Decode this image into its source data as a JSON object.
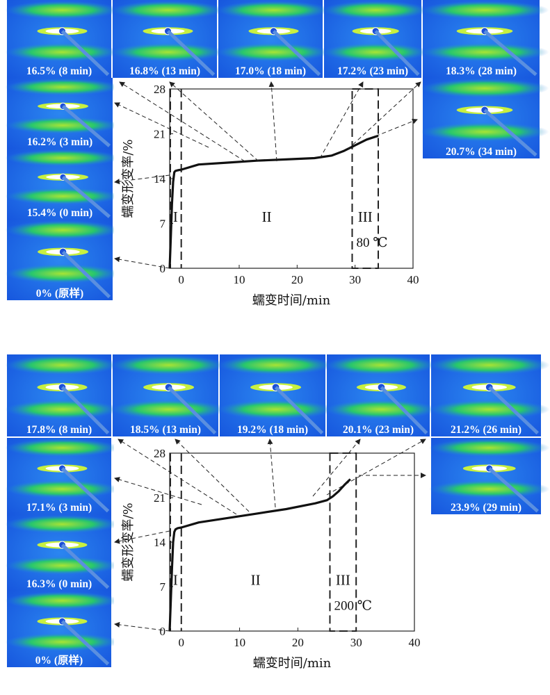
{
  "chart_data": [
    {
      "type": "line",
      "xlabel": "蠕变时间/min",
      "ylabel": "蠕变形变率/%",
      "xlim": [
        -2,
        40
      ],
      "ylim": [
        0,
        28
      ],
      "xticks": [
        0,
        10,
        20,
        30,
        40
      ],
      "yticks": [
        0,
        7,
        14,
        21,
        28
      ],
      "regions": [
        {
          "label": "I",
          "x0": -2,
          "x1": 0
        },
        {
          "label": "II",
          "x0": 0,
          "x1": 29.5
        },
        {
          "label": "III",
          "x0": 29.5,
          "x1": 34
        }
      ],
      "temperature": "80 ℃",
      "series": [
        {
          "x": [
            -2,
            -1.8,
            -1.6,
            -1.4,
            -1.2,
            -1,
            -0.6,
            0,
            3,
            8,
            13,
            18,
            23,
            26,
            28,
            30,
            32,
            34
          ],
          "y": [
            0,
            5,
            10,
            13.5,
            15,
            15.2,
            15.3,
            15.4,
            16.2,
            16.5,
            16.8,
            17.0,
            17.2,
            17.6,
            18.3,
            19.2,
            20.1,
            20.7
          ]
        }
      ],
      "annotations": [
        "16.5% (8 min)",
        "16.8% (13 min)",
        "17.0% (18 min)",
        "17.2% (23 min)",
        "18.3% (28 min)",
        "16.2% (3 min)",
        "15.4% (0 min)",
        "0% (原样)",
        "20.7% (34 min)"
      ]
    },
    {
      "type": "line",
      "xlabel": "蠕变时间/min",
      "ylabel": "蠕变形变率/%",
      "xlim": [
        -2,
        40
      ],
      "ylim": [
        0,
        28
      ],
      "xticks": [
        0,
        10,
        20,
        30,
        40
      ],
      "yticks": [
        0,
        7,
        14,
        21,
        28
      ],
      "regions": [
        {
          "label": "I",
          "x0": -2,
          "x1": 0
        },
        {
          "label": "II",
          "x0": 0,
          "x1": 25.5
        },
        {
          "label": "III",
          "x0": 25.5,
          "x1": 30
        }
      ],
      "temperature": "200 ℃",
      "series": [
        {
          "x": [
            -2,
            -1.8,
            -1.6,
            -1.4,
            -1.2,
            -1,
            -0.6,
            0,
            3,
            8,
            13,
            18,
            23,
            25,
            26,
            27,
            28,
            29
          ],
          "y": [
            0,
            5,
            10,
            14,
            15.6,
            16.0,
            16.2,
            16.3,
            17.1,
            17.8,
            18.5,
            19.2,
            20.1,
            20.6,
            21.2,
            22.0,
            23.0,
            23.9
          ]
        }
      ],
      "annotations": [
        "17.8% (8 min)",
        "18.5% (13 min)",
        "19.2% (18 min)",
        "20.1% (23 min)",
        "21.2% (26 min)",
        "17.1% (3 min)",
        "16.3% (0 min)",
        "0% (原样)",
        "23.9% (29 min)"
      ]
    }
  ]
}
